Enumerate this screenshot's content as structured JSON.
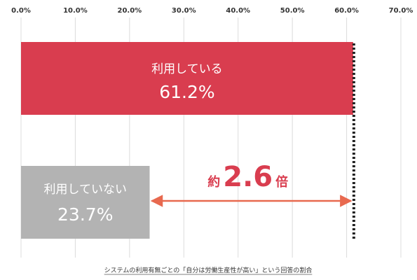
{
  "chart_data": {
    "type": "bar",
    "orientation": "horizontal",
    "xlim": [
      0,
      70
    ],
    "ticks": [
      "0.0%",
      "10.0%",
      "20.0%",
      "30.0%",
      "40.0%",
      "50.0%",
      "60.0%",
      "70.0%"
    ],
    "grid": true,
    "bars": [
      {
        "label": "利用している",
        "value": 61.2,
        "value_label": "61.2%",
        "color": "#d93d4f"
      },
      {
        "label": "利用していない",
        "value": 23.7,
        "value_label": "23.7%",
        "color": "#b3b3b3"
      }
    ],
    "annotation": {
      "prefix": "約",
      "number": "2.6",
      "suffix": "倍",
      "color": "#d93d4f",
      "arrow_color": "#e8694f"
    },
    "caption": "システムの利用有無ごとの「自分は労働生産性が高い」という回答の割合"
  }
}
